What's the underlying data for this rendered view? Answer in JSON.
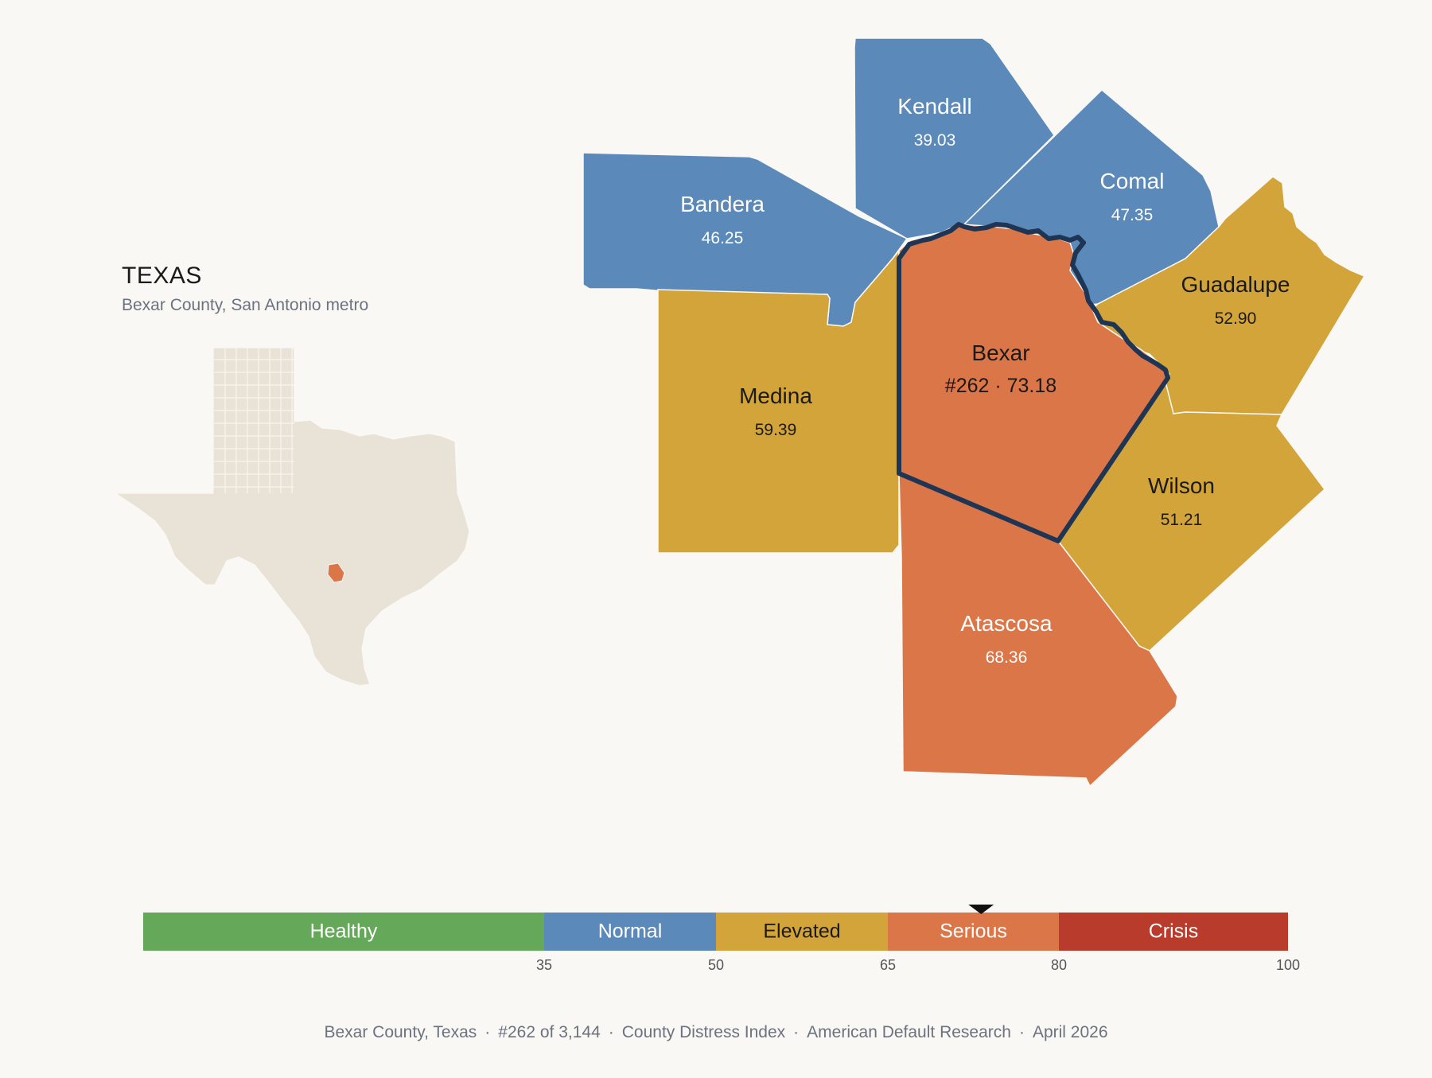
{
  "inset": {
    "title": "TEXAS",
    "subtitle": "Bexar County, San Antonio metro",
    "highlight_color": "#db7649",
    "base_color": "#e9e2d6"
  },
  "counties": [
    {
      "id": "kendall",
      "name": "Kendall",
      "value_label": "39.03",
      "value": 39.03,
      "category": "Normal"
    },
    {
      "id": "comal",
      "name": "Comal",
      "value_label": "47.35",
      "value": 47.35,
      "category": "Normal"
    },
    {
      "id": "bandera",
      "name": "Bandera",
      "value_label": "46.25",
      "value": 46.25,
      "category": "Normal"
    },
    {
      "id": "guadalupe",
      "name": "Guadalupe",
      "value_label": "52.90",
      "value": 52.9,
      "category": "Elevated"
    },
    {
      "id": "medina",
      "name": "Medina",
      "value_label": "59.39",
      "value": 59.39,
      "category": "Elevated"
    },
    {
      "id": "bexar",
      "name": "Bexar",
      "value_label": "#262 · 73.18",
      "value": 73.18,
      "category": "Serious",
      "focus": true
    },
    {
      "id": "wilson",
      "name": "Wilson",
      "value_label": "51.21",
      "value": 51.21,
      "category": "Elevated"
    },
    {
      "id": "atascosa",
      "name": "Atascosa",
      "value_label": "68.36",
      "value": 68.36,
      "category": "Serious"
    }
  ],
  "scale": {
    "min": 0,
    "max": 100,
    "marker_value": 73.18,
    "bands": [
      {
        "label": "Healthy",
        "from": 0,
        "to": 35,
        "color": "#66a85a",
        "text_color": "#ffffff"
      },
      {
        "label": "Normal",
        "from": 35,
        "to": 50,
        "color": "#5b89b9",
        "text_color": "#ffffff"
      },
      {
        "label": "Elevated",
        "from": 50,
        "to": 65,
        "color": "#d3a43a",
        "text_color": "#1a1a1a"
      },
      {
        "label": "Serious",
        "from": 65,
        "to": 80,
        "color": "#db7649",
        "text_color": "#ffffff"
      },
      {
        "label": "Crisis",
        "from": 80,
        "to": 100,
        "color": "#b93b2b",
        "text_color": "#ffffff"
      }
    ],
    "ticks": [
      "35",
      "50",
      "65",
      "80",
      "100"
    ],
    "focus_outline_color": "#1f3554"
  },
  "footer": {
    "parts": [
      "Bexar County, Texas",
      "#262 of 3,144",
      "County Distress Index",
      "American Default Research",
      "April 2026"
    ],
    "separator": "·"
  }
}
